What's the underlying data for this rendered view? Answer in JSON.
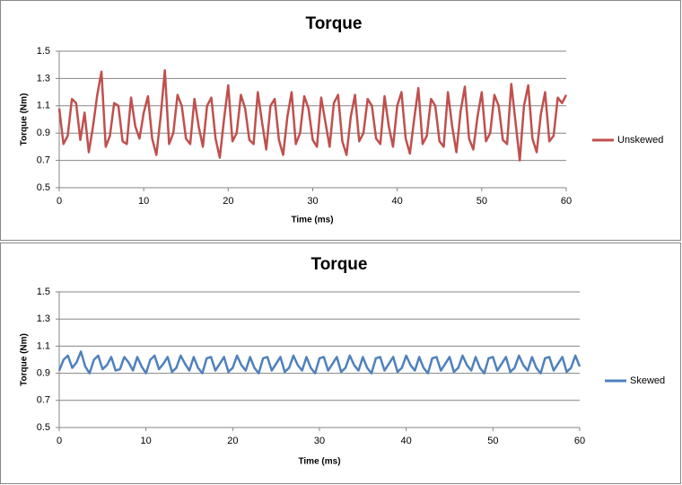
{
  "chart_data": [
    {
      "type": "line",
      "title": "Torque",
      "x_label": "Time (ms)",
      "y_label": "Torque (Nm)",
      "x": [
        0,
        0.5,
        1,
        1.5,
        2,
        2.5,
        3,
        3.5,
        4,
        4.5,
        5,
        5.5,
        6,
        6.5,
        7,
        7.5,
        8,
        8.5,
        9,
        9.5,
        10,
        10.5,
        11,
        11.5,
        12,
        12.5,
        13,
        13.5,
        14,
        14.5,
        15,
        15.5,
        16,
        16.5,
        17,
        17.5,
        18,
        18.5,
        19,
        19.5,
        20,
        20.5,
        21,
        21.5,
        22,
        22.5,
        23,
        23.5,
        24,
        24.5,
        25,
        25.5,
        26,
        26.5,
        27,
        27.5,
        28,
        28.5,
        29,
        29.5,
        30,
        30.5,
        31,
        31.5,
        32,
        32.5,
        33,
        33.5,
        34,
        34.5,
        35,
        35.5,
        36,
        36.5,
        37,
        37.5,
        38,
        38.5,
        39,
        39.5,
        40,
        40.5,
        41,
        41.5,
        42,
        42.5,
        43,
        43.5,
        44,
        44.5,
        45,
        45.5,
        46,
        46.5,
        47,
        47.5,
        48,
        48.5,
        49,
        49.5,
        50,
        50.5,
        51,
        51.5,
        52,
        52.5,
        53,
        53.5,
        54,
        54.5,
        55,
        55.5,
        56,
        56.5,
        57,
        57.5,
        58,
        58.5,
        59,
        59.5,
        60
      ],
      "series": [
        {
          "name": "Unskewed",
          "color": "#c0504d",
          "values": [
            1.08,
            0.82,
            0.88,
            1.15,
            1.12,
            0.85,
            1.05,
            0.76,
            0.95,
            1.18,
            1.35,
            0.8,
            0.88,
            1.12,
            1.1,
            0.84,
            0.82,
            1.16,
            0.95,
            0.86,
            1.05,
            1.17,
            0.86,
            0.74,
            1.02,
            1.36,
            0.82,
            0.9,
            1.18,
            1.1,
            0.86,
            0.82,
            1.15,
            0.95,
            0.8,
            1.1,
            1.16,
            0.86,
            0.72,
            1.0,
            1.25,
            0.84,
            0.9,
            1.18,
            1.08,
            0.85,
            0.82,
            1.2,
            0.98,
            0.78,
            1.1,
            1.15,
            0.85,
            0.74,
            1.02,
            1.2,
            0.82,
            0.9,
            1.17,
            1.08,
            0.85,
            0.8,
            1.16,
            0.98,
            0.8,
            1.12,
            1.18,
            0.84,
            0.74,
            1.02,
            1.18,
            0.84,
            0.9,
            1.15,
            1.1,
            0.86,
            0.82,
            1.17,
            0.95,
            0.8,
            1.1,
            1.2,
            0.86,
            0.75,
            1.0,
            1.23,
            0.82,
            0.88,
            1.15,
            1.1,
            0.84,
            0.8,
            1.2,
            0.95,
            0.76,
            1.06,
            1.24,
            0.86,
            0.78,
            1.02,
            1.2,
            0.84,
            0.9,
            1.18,
            1.1,
            0.85,
            0.82,
            1.26,
            0.98,
            0.7,
            1.1,
            1.25,
            0.86,
            0.76,
            1.04,
            1.2,
            0.84,
            0.88,
            1.16,
            1.12,
            1.18
          ]
        }
      ],
      "xlim": [
        0,
        60
      ],
      "ylim": [
        0.5,
        1.5
      ],
      "xticks": [
        0,
        10,
        20,
        30,
        40,
        50,
        60
      ],
      "yticks": [
        0.5,
        0.7,
        0.9,
        1.1,
        1.3,
        1.5
      ],
      "grid": true,
      "legend": "right"
    },
    {
      "type": "line",
      "title": "Torque",
      "x_label": "Time (ms)",
      "y_label": "Torque (Nm)",
      "x": [
        0,
        0.5,
        1,
        1.5,
        2,
        2.5,
        3,
        3.5,
        4,
        4.5,
        5,
        5.5,
        6,
        6.5,
        7,
        7.5,
        8,
        8.5,
        9,
        9.5,
        10,
        10.5,
        11,
        11.5,
        12,
        12.5,
        13,
        13.5,
        14,
        14.5,
        15,
        15.5,
        16,
        16.5,
        17,
        17.5,
        18,
        18.5,
        19,
        19.5,
        20,
        20.5,
        21,
        21.5,
        22,
        22.5,
        23,
        23.5,
        24,
        24.5,
        25,
        25.5,
        26,
        26.5,
        27,
        27.5,
        28,
        28.5,
        29,
        29.5,
        30,
        30.5,
        31,
        31.5,
        32,
        32.5,
        33,
        33.5,
        34,
        34.5,
        35,
        35.5,
        36,
        36.5,
        37,
        37.5,
        38,
        38.5,
        39,
        39.5,
        40,
        40.5,
        41,
        41.5,
        42,
        42.5,
        43,
        43.5,
        44,
        44.5,
        45,
        45.5,
        46,
        46.5,
        47,
        47.5,
        48,
        48.5,
        49,
        49.5,
        50,
        50.5,
        51,
        51.5,
        52,
        52.5,
        53,
        53.5,
        54,
        54.5,
        55,
        55.5,
        56,
        56.5,
        57,
        57.5,
        58,
        58.5,
        59,
        59.5,
        60
      ],
      "series": [
        {
          "name": "Skewed",
          "color": "#4f81bd",
          "values": [
            0.92,
            1.0,
            1.03,
            0.94,
            0.98,
            1.06,
            0.95,
            0.9,
            1.0,
            1.03,
            0.93,
            0.96,
            1.02,
            0.92,
            0.93,
            1.02,
            0.98,
            0.92,
            1.02,
            0.95,
            0.9,
            1.0,
            1.03,
            0.93,
            0.97,
            1.02,
            0.91,
            0.94,
            1.03,
            0.97,
            0.92,
            1.02,
            0.94,
            0.9,
            1.01,
            1.02,
            0.92,
            0.97,
            1.02,
            0.91,
            0.94,
            1.03,
            0.96,
            0.92,
            1.02,
            0.94,
            0.9,
            1.01,
            1.02,
            0.92,
            0.97,
            1.02,
            0.91,
            0.94,
            1.03,
            0.96,
            0.92,
            1.02,
            0.94,
            0.9,
            1.01,
            1.02,
            0.92,
            0.97,
            1.02,
            0.91,
            0.94,
            1.03,
            0.96,
            0.92,
            1.02,
            0.94,
            0.9,
            1.01,
            1.02,
            0.92,
            0.97,
            1.02,
            0.91,
            0.94,
            1.03,
            0.96,
            0.92,
            1.02,
            0.94,
            0.9,
            1.01,
            1.02,
            0.92,
            0.97,
            1.02,
            0.91,
            0.94,
            1.03,
            0.96,
            0.92,
            1.02,
            0.94,
            0.9,
            1.01,
            1.02,
            0.92,
            0.97,
            1.02,
            0.91,
            0.94,
            1.03,
            0.96,
            0.92,
            1.02,
            0.94,
            0.9,
            1.01,
            1.02,
            0.92,
            0.97,
            1.02,
            0.91,
            0.94,
            1.03,
            0.95
          ]
        }
      ],
      "xlim": [
        0,
        60
      ],
      "ylim": [
        0.5,
        1.5
      ],
      "xticks": [
        0,
        10,
        20,
        30,
        40,
        50,
        60
      ],
      "yticks": [
        0.5,
        0.7,
        0.9,
        1.1,
        1.3,
        1.5
      ],
      "grid": true,
      "legend": "right"
    }
  ]
}
